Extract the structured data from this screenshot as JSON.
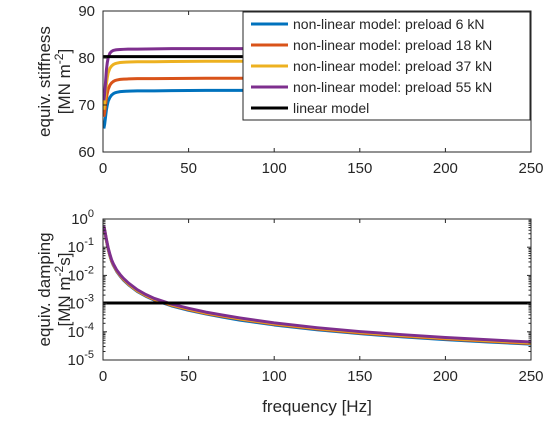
{
  "chart_data": [
    {
      "type": "line",
      "xlabel": "",
      "ylabel": [
        "equiv. stiffness",
        "[MN m",
        "-2",
        "]"
      ],
      "xlim": [
        0,
        250
      ],
      "ylim": [
        60,
        90
      ],
      "xticks": [
        "0",
        "50",
        "100",
        "150",
        "200",
        "250"
      ],
      "yticks": [
        "60",
        "70",
        "80",
        "90"
      ],
      "grid": false,
      "legend_position": "top-right",
      "series": [
        {
          "name": "non-linear model: preload 6 kN",
          "color": "#0072BD",
          "x": [
            0.5,
            1,
            1.5,
            2,
            2.5,
            3,
            4,
            5,
            6,
            7,
            8,
            10,
            12,
            15,
            20,
            30,
            40,
            60,
            80,
            100,
            150,
            200,
            250
          ],
          "y": [
            65,
            66,
            67.5,
            69,
            70,
            70.8,
            71.6,
            72.1,
            72.4,
            72.6,
            72.7,
            72.85,
            72.9,
            72.95,
            73,
            73,
            73.05,
            73.1,
            73.1,
            73.1,
            73.1,
            73.1,
            73.1
          ]
        },
        {
          "name": "non-linear model: preload 18 kN",
          "color": "#D95319",
          "x": [
            0.5,
            1,
            1.5,
            2,
            2.5,
            3,
            4,
            5,
            6,
            7,
            8,
            10,
            12,
            15,
            20,
            30,
            40,
            60,
            80,
            100,
            150,
            200,
            250
          ],
          "y": [
            67.5,
            68.5,
            70,
            71.5,
            72.5,
            73.3,
            74.2,
            74.7,
            75,
            75.2,
            75.3,
            75.45,
            75.5,
            75.55,
            75.6,
            75.6,
            75.65,
            75.7,
            75.7,
            75.7,
            75.7,
            75.7,
            75.7
          ]
        },
        {
          "name": "non-linear model: preload 37 kN",
          "color": "#EDB120",
          "x": [
            0.5,
            1,
            1.5,
            2,
            2.5,
            3,
            4,
            5,
            6,
            7,
            8,
            10,
            12,
            15,
            20,
            30,
            40,
            60,
            80,
            100,
            150,
            200,
            250
          ],
          "y": [
            69,
            70.5,
            72.5,
            74.5,
            75.8,
            76.8,
            77.8,
            78.3,
            78.6,
            78.8,
            78.9,
            79.05,
            79.1,
            79.15,
            79.2,
            79.2,
            79.25,
            79.3,
            79.3,
            79.3,
            79.3,
            79.3,
            79.3
          ]
        },
        {
          "name": "non-linear model: preload 55 kN",
          "color": "#7E2F8E",
          "x": [
            0.5,
            1,
            1.5,
            2,
            2.5,
            3,
            4,
            5,
            6,
            7,
            8,
            10,
            12,
            15,
            20,
            30,
            40,
            60,
            80,
            100,
            150,
            200,
            250
          ],
          "y": [
            71,
            72.5,
            75,
            77.5,
            79,
            80,
            81,
            81.4,
            81.6,
            81.7,
            81.75,
            81.8,
            81.85,
            81.9,
            81.9,
            81.95,
            82,
            82,
            82,
            82,
            82,
            82,
            82
          ]
        },
        {
          "name": "linear model",
          "color": "#000000",
          "x": [
            0,
            250
          ],
          "y": [
            80.3,
            80.3
          ]
        }
      ]
    },
    {
      "type": "line",
      "xlabel": "frequency [Hz]",
      "ylabel": [
        "equiv. damping",
        "[MN m",
        "-2",
        "s]"
      ],
      "xlim": [
        0,
        250
      ],
      "ylim": [
        1e-05,
        1
      ],
      "yscale": "log",
      "xticks": [
        "0",
        "50",
        "100",
        "150",
        "200",
        "250"
      ],
      "yticks": [
        {
          "base": "10",
          "exp": "-5"
        },
        {
          "base": "10",
          "exp": "-4"
        },
        {
          "base": "10",
          "exp": "-3"
        },
        {
          "base": "10",
          "exp": "-2"
        },
        {
          "base": "10",
          "exp": "-1"
        },
        {
          "base": "10",
          "exp": "0"
        }
      ],
      "grid": false,
      "series": [
        {
          "color": "#0072BD",
          "x": [
            0.5,
            1,
            1.5,
            2,
            3,
            4,
            5,
            6,
            8,
            10,
            12,
            15,
            20,
            25,
            30,
            40,
            50,
            60,
            70,
            80,
            100,
            125,
            150,
            175,
            200,
            225,
            250
          ],
          "y": [
            0.52,
            0.37,
            0.25,
            0.17,
            0.085,
            0.05,
            0.032,
            0.023,
            0.0138,
            0.0094,
            0.0068,
            0.0046,
            0.0027,
            0.00183,
            0.00133,
            0.00083,
            0.00058,
            0.00043,
            0.00033,
            0.00026,
            0.000175,
            0.000118,
            8.6e-05,
            6.6e-05,
            5.3e-05,
            4.35e-05,
            3.65e-05
          ]
        },
        {
          "color": "#D95319",
          "x": [
            0.5,
            1,
            1.5,
            2,
            3,
            4,
            5,
            6,
            8,
            10,
            12,
            15,
            20,
            25,
            30,
            40,
            50,
            60,
            70,
            80,
            100,
            125,
            150,
            175,
            200,
            225,
            250
          ],
          "y": [
            0.53,
            0.38,
            0.26,
            0.175,
            0.088,
            0.052,
            0.033,
            0.024,
            0.0143,
            0.0098,
            0.0071,
            0.0048,
            0.0028,
            0.0019,
            0.00138,
            0.00087,
            0.00061,
            0.00045,
            0.00035,
            0.00028,
            0.000185,
            0.000125,
            9.1e-05,
            7e-05,
            5.6e-05,
            4.6e-05,
            3.85e-05
          ]
        },
        {
          "color": "#EDB120",
          "x": [
            0.5,
            1,
            1.5,
            2,
            3,
            4,
            5,
            6,
            8,
            10,
            12,
            15,
            20,
            25,
            30,
            40,
            50,
            60,
            70,
            80,
            100,
            125,
            150,
            175,
            200,
            225,
            250
          ],
          "y": [
            0.55,
            0.39,
            0.27,
            0.18,
            0.091,
            0.054,
            0.034,
            0.025,
            0.0148,
            0.0102,
            0.0074,
            0.005,
            0.0029,
            0.00198,
            0.00144,
            0.00091,
            0.00064,
            0.00047,
            0.00037,
            0.00029,
            0.000195,
            0.000132,
            9.6e-05,
            7.4e-05,
            5.9e-05,
            4.85e-05,
            4.05e-05
          ]
        },
        {
          "color": "#7E2F8E",
          "x": [
            0.5,
            1,
            1.5,
            2,
            3,
            4,
            5,
            6,
            8,
            10,
            12,
            15,
            20,
            25,
            30,
            40,
            50,
            60,
            70,
            80,
            100,
            125,
            150,
            175,
            200,
            225,
            250
          ],
          "y": [
            0.57,
            0.41,
            0.28,
            0.19,
            0.095,
            0.057,
            0.036,
            0.026,
            0.0155,
            0.0107,
            0.0078,
            0.0053,
            0.0031,
            0.0021,
            0.00152,
            0.00096,
            0.00068,
            0.0005,
            0.00039,
            0.00031,
            0.000207,
            0.00014,
            0.000102,
            7.9e-05,
            6.3e-05,
            5.2e-05,
            4.35e-05
          ]
        },
        {
          "color": "#000000",
          "x": [
            0,
            250
          ],
          "y": [
            0.00105,
            0.00105
          ]
        }
      ]
    }
  ]
}
